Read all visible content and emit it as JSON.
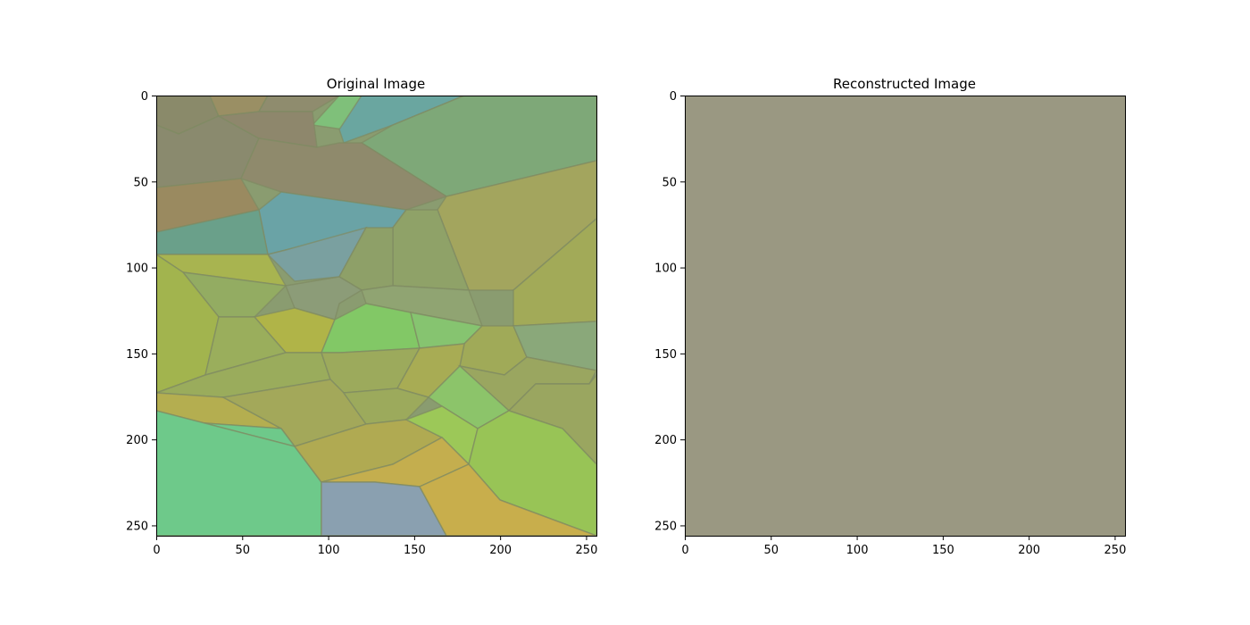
{
  "panels": [
    {
      "title": "Original Image",
      "x_ticks": [
        "0",
        "50",
        "100",
        "150",
        "200",
        "250"
      ],
      "y_ticks": [
        "0",
        "50",
        "100",
        "150",
        "200",
        "250"
      ],
      "image_extent": [
        0,
        256
      ],
      "content": "voronoi-mosaic",
      "palette": [
        "#7f8f6e",
        "#8a8a6a",
        "#6aa6a0",
        "#7ea878",
        "#9caa5c",
        "#a3b04f",
        "#83c66a",
        "#6ec98a",
        "#c4ae4e",
        "#8aa0b0",
        "#8a9c70"
      ]
    },
    {
      "title": "Reconstructed Image",
      "x_ticks": [
        "0",
        "50",
        "100",
        "150",
        "200",
        "250"
      ],
      "y_ticks": [
        "0",
        "50",
        "100",
        "150",
        "200",
        "250"
      ],
      "image_extent": [
        0,
        256
      ],
      "content": "uniform-fill",
      "fill_color": "#9a9882"
    }
  ]
}
